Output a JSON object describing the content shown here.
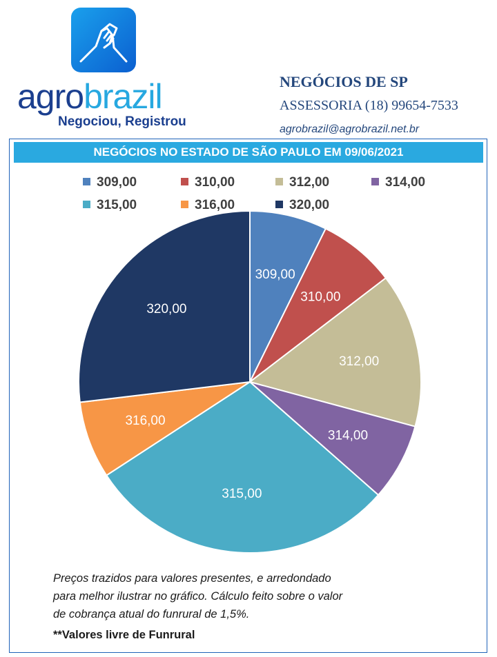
{
  "logo": {
    "icon": "handshake-icon",
    "brand_part1": "agro",
    "brand_part2": "brazil",
    "slogan": "Negociou, Registrou"
  },
  "header": {
    "company": "NEGÓCIOS DE SP",
    "contact": "ASSESSORIA (18) 99654-7533",
    "email": "agrobrazil@agrobrazil.net.br"
  },
  "colors": {
    "309,00": "#4f81bd",
    "310,00": "#c0504d",
    "312,00": "#c4bd97",
    "314,00": "#8064a2",
    "315,00": "#4bacc6",
    "316,00": "#f79646",
    "320,00": "#1f3864"
  },
  "chart_data": {
    "type": "pie",
    "title": "NEGÓCIOS NO ESTADO DE SÃO PAULO EM 09/06/2021",
    "legend_position": "top",
    "categories": [
      "309,00",
      "310,00",
      "312,00",
      "314,00",
      "315,00",
      "316,00",
      "320,00"
    ],
    "values": [
      7.3,
      7.3,
      14.6,
      7.3,
      29.3,
      7.3,
      26.9
    ],
    "value_unit": "percent of pie (estimated)"
  },
  "footer": {
    "note_line1": "Preços trazidos para valores presentes, e arredondado",
    "note_line2": "para melhor ilustrar no gráfico. Cálculo feito sobre o valor",
    "note_line3": "de cobrança atual do funrural de 1,5%.",
    "note_bold": "**Valores livre de Funrural"
  }
}
